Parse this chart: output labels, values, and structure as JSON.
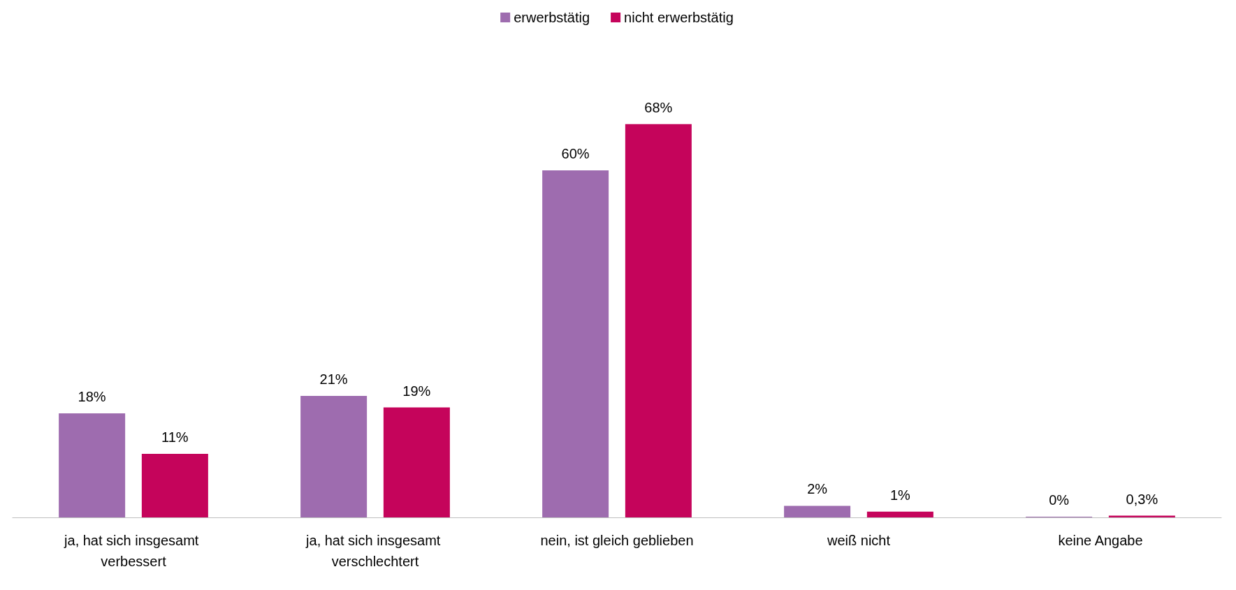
{
  "chart_data": {
    "type": "bar",
    "categories": [
      "ja, hat sich insgesamt verbessert",
      "ja, hat sich insgesamt verschlechtert",
      "nein, ist gleich geblieben",
      "weiß nicht",
      "keine Angabe"
    ],
    "series": [
      {
        "name": "erwerbstätig",
        "color": "#9e6caf",
        "values": [
          18,
          21,
          60,
          2,
          0
        ],
        "value_labels": [
          "18%",
          "21%",
          "60%",
          "2%",
          "0%"
        ]
      },
      {
        "name": "nicht erwerbstätig",
        "color": "#c5045b",
        "values": [
          11,
          19,
          68,
          1,
          0.3
        ],
        "value_labels": [
          "11%",
          "19%",
          "68%",
          "1%",
          "0,3%"
        ]
      }
    ],
    "legend": "top"
  }
}
